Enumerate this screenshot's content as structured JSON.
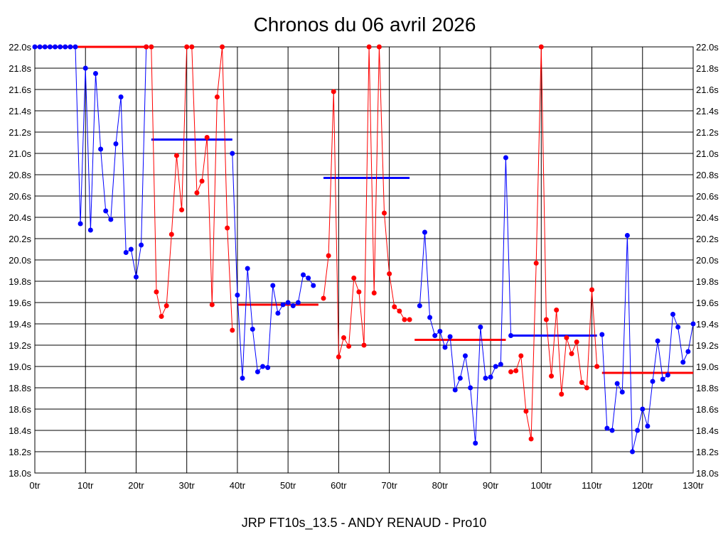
{
  "chart_data": {
    "type": "line",
    "title": "Chronos du 06 avril 2026",
    "subtitle": "JRP FT10s_13.5 - ANDY RENAUD - Pro10",
    "x_ticks": [
      "0tr",
      "10tr",
      "20tr",
      "30tr",
      "40tr",
      "50tr",
      "60tr",
      "70tr",
      "80tr",
      "90tr",
      "100tr",
      "110tr",
      "120tr",
      "130tr"
    ],
    "y_ticks": [
      "18.0s",
      "18.2s",
      "18.4s",
      "18.6s",
      "18.8s",
      "19.0s",
      "19.2s",
      "19.4s",
      "19.6s",
      "19.8s",
      "20.0s",
      "20.2s",
      "20.4s",
      "20.6s",
      "20.8s",
      "21.0s",
      "21.2s",
      "21.4s",
      "21.6s",
      "21.8s",
      "22.0s"
    ],
    "xlim": [
      0,
      130
    ],
    "ylim": [
      18.0,
      22.0
    ],
    "grid": true,
    "series_colors": [
      "#0000ff",
      "#ff0000"
    ],
    "series": [
      {
        "color": "#0000ff",
        "points": [
          [
            0,
            22.0
          ],
          [
            1,
            22.0
          ],
          [
            2,
            22.0
          ],
          [
            3,
            22.0
          ],
          [
            4,
            22.0
          ],
          [
            5,
            22.0
          ],
          [
            6,
            22.0
          ],
          [
            7,
            22.0
          ],
          [
            8,
            22.0
          ],
          [
            9,
            20.34
          ],
          [
            10,
            21.8
          ],
          [
            11,
            20.28
          ],
          [
            12,
            21.75
          ],
          [
            13,
            21.04
          ],
          [
            14,
            20.46
          ],
          [
            15,
            20.38
          ],
          [
            16,
            21.09
          ],
          [
            17,
            21.53
          ],
          [
            18,
            20.07
          ],
          [
            19,
            20.1
          ],
          [
            20,
            19.84
          ],
          [
            21,
            20.14
          ],
          [
            22,
            22.0
          ]
        ]
      },
      {
        "color": "#ff0000",
        "points": [
          [
            22,
            22.0
          ],
          [
            23,
            22.0
          ],
          [
            24,
            19.7
          ],
          [
            25,
            19.47
          ],
          [
            26,
            19.57
          ],
          [
            27,
            20.24
          ],
          [
            28,
            20.98
          ],
          [
            29,
            20.47
          ],
          [
            30,
            22.0
          ],
          [
            31,
            22.0
          ],
          [
            32,
            20.63
          ],
          [
            33,
            20.74
          ],
          [
            34,
            21.15
          ],
          [
            35,
            19.58
          ],
          [
            36,
            21.53
          ],
          [
            37,
            22.0
          ],
          [
            38,
            20.3
          ],
          [
            39,
            19.34
          ]
        ]
      },
      {
        "color": "#0000ff",
        "points": [
          [
            39,
            21.0
          ],
          [
            40,
            19.67
          ],
          [
            41,
            18.89
          ],
          [
            42,
            19.92
          ],
          [
            43,
            19.35
          ],
          [
            44,
            18.95
          ],
          [
            45,
            19.0
          ],
          [
            46,
            18.99
          ],
          [
            47,
            19.76
          ],
          [
            48,
            19.5
          ],
          [
            49,
            19.58
          ],
          [
            50,
            19.6
          ],
          [
            51,
            19.57
          ],
          [
            52,
            19.6
          ],
          [
            53,
            19.86
          ],
          [
            54,
            19.83
          ],
          [
            55,
            19.76
          ]
        ]
      },
      {
        "color": "#ff0000",
        "points": [
          [
            57,
            19.64
          ],
          [
            58,
            20.04
          ],
          [
            59,
            21.58
          ],
          [
            60,
            19.09
          ],
          [
            61,
            19.27
          ],
          [
            62,
            19.19
          ],
          [
            63,
            19.83
          ],
          [
            64,
            19.7
          ],
          [
            65,
            19.2
          ],
          [
            66,
            22.0
          ],
          [
            67,
            19.69
          ],
          [
            68,
            22.0
          ],
          [
            69,
            20.44
          ],
          [
            70,
            19.87
          ],
          [
            71,
            19.56
          ],
          [
            72,
            19.52
          ],
          [
            73,
            19.44
          ],
          [
            74,
            19.44
          ]
        ]
      },
      {
        "color": "#0000ff",
        "points": [
          [
            76,
            19.57
          ],
          [
            77,
            20.26
          ],
          [
            78,
            19.46
          ],
          [
            79,
            19.29
          ],
          [
            80,
            19.33
          ],
          [
            81,
            19.18
          ],
          [
            82,
            19.28
          ],
          [
            83,
            18.78
          ],
          [
            84,
            18.89
          ],
          [
            85,
            19.1
          ],
          [
            86,
            18.8
          ],
          [
            87,
            18.28
          ],
          [
            88,
            19.37
          ],
          [
            89,
            18.89
          ],
          [
            90,
            18.9
          ],
          [
            91,
            19.0
          ],
          [
            92,
            19.02
          ],
          [
            93,
            20.96
          ],
          [
            94,
            19.29
          ]
        ]
      },
      {
        "color": "#ff0000",
        "points": [
          [
            94,
            18.95
          ],
          [
            95,
            18.96
          ],
          [
            96,
            19.1
          ],
          [
            97,
            18.58
          ],
          [
            98,
            18.32
          ],
          [
            99,
            19.97
          ],
          [
            100,
            22.0
          ],
          [
            101,
            19.44
          ],
          [
            102,
            18.91
          ],
          [
            103,
            19.53
          ],
          [
            104,
            18.74
          ],
          [
            105,
            19.27
          ],
          [
            106,
            19.12
          ],
          [
            107,
            19.23
          ],
          [
            108,
            18.85
          ],
          [
            109,
            18.8
          ],
          [
            110,
            19.72
          ],
          [
            111,
            19.0
          ]
        ]
      },
      {
        "color": "#0000ff",
        "points": [
          [
            112,
            19.3
          ],
          [
            113,
            18.42
          ],
          [
            114,
            18.4
          ],
          [
            115,
            18.84
          ],
          [
            116,
            18.76
          ],
          [
            117,
            20.23
          ],
          [
            118,
            18.2
          ],
          [
            119,
            18.4
          ],
          [
            120,
            18.6
          ],
          [
            121,
            18.44
          ],
          [
            122,
            18.86
          ],
          [
            123,
            19.24
          ],
          [
            124,
            18.88
          ],
          [
            125,
            18.92
          ],
          [
            126,
            19.49
          ],
          [
            127,
            19.37
          ],
          [
            128,
            19.04
          ],
          [
            129,
            19.14
          ],
          [
            130,
            19.4
          ]
        ]
      }
    ],
    "averages": [
      {
        "color": "#ff0000",
        "x": [
          0,
          22
        ],
        "y": 22.0
      },
      {
        "color": "#0000ff",
        "x": [
          23,
          39
        ],
        "y": 21.13
      },
      {
        "color": "#ff0000",
        "x": [
          40,
          56
        ],
        "y": 19.58
      },
      {
        "color": "#0000ff",
        "x": [
          57,
          74
        ],
        "y": 20.77
      },
      {
        "color": "#ff0000",
        "x": [
          75,
          93
        ],
        "y": 19.25
      },
      {
        "color": "#0000ff",
        "x": [
          94,
          111
        ],
        "y": 19.29
      },
      {
        "color": "#ff0000",
        "x": [
          112,
          130
        ],
        "y": 18.94
      }
    ]
  }
}
